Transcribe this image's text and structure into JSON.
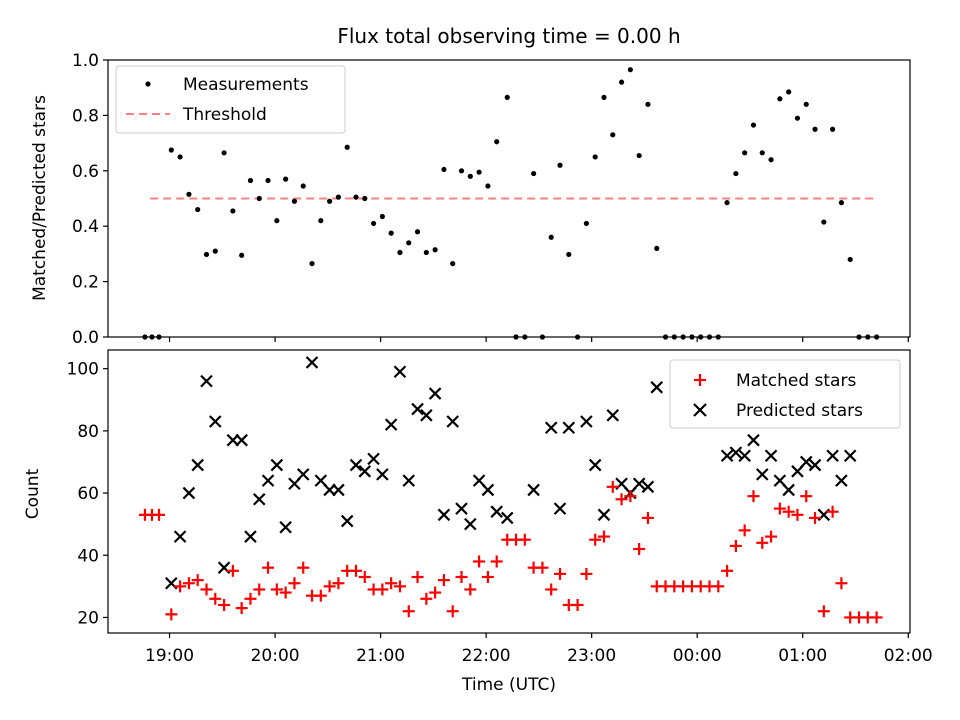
{
  "chart_data": [
    {
      "type": "scatter",
      "title": "Flux total observing time = 0.00 h",
      "xlabel": "",
      "ylabel": "Matched/Predicted stars",
      "ylim": [
        0,
        1.0
      ],
      "yticks": [
        "0.0",
        "0.2",
        "0.4",
        "0.6",
        "0.8",
        "1.0"
      ],
      "legend": {
        "position": "top-left",
        "entries": [
          "Measurements",
          "Threshold"
        ]
      },
      "threshold": {
        "value": 0.5,
        "x_start": "18:49",
        "x_end": "01:42",
        "color": "#ff8080"
      },
      "series": [
        {
          "name": "Measurements",
          "color": "#000000",
          "points": [
            [
              "18:46",
              0.0
            ],
            [
              "18:50",
              0.0
            ],
            [
              "18:54",
              0.0
            ],
            [
              "19:01",
              0.675
            ],
            [
              "19:06",
              0.65
            ],
            [
              "19:11",
              0.515
            ],
            [
              "19:16",
              0.46
            ],
            [
              "19:21",
              0.298
            ],
            [
              "19:26",
              0.31
            ],
            [
              "19:31",
              0.665
            ],
            [
              "19:36",
              0.455
            ],
            [
              "19:41",
              0.295
            ],
            [
              "19:46",
              0.565
            ],
            [
              "19:51",
              0.5
            ],
            [
              "19:56",
              0.565
            ],
            [
              "20:01",
              0.42
            ],
            [
              "20:06",
              0.57
            ],
            [
              "20:11",
              0.49
            ],
            [
              "20:16",
              0.545
            ],
            [
              "20:21",
              0.265
            ],
            [
              "20:26",
              0.42
            ],
            [
              "20:31",
              0.49
            ],
            [
              "20:36",
              0.505
            ],
            [
              "20:41",
              0.685
            ],
            [
              "20:46",
              0.505
            ],
            [
              "20:51",
              0.5
            ],
            [
              "20:56",
              0.41
            ],
            [
              "21:01",
              0.435
            ],
            [
              "21:06",
              0.375
            ],
            [
              "21:11",
              0.305
            ],
            [
              "21:16",
              0.34
            ],
            [
              "21:21",
              0.38
            ],
            [
              "21:26",
              0.305
            ],
            [
              "21:31",
              0.315
            ],
            [
              "21:36",
              0.605
            ],
            [
              "21:41",
              0.265
            ],
            [
              "21:46",
              0.6
            ],
            [
              "21:51",
              0.58
            ],
            [
              "21:56",
              0.595
            ],
            [
              "22:01",
              0.545
            ],
            [
              "22:06",
              0.705
            ],
            [
              "22:12",
              0.865
            ],
            [
              "22:17",
              0.0
            ],
            [
              "22:22",
              0.0
            ],
            [
              "22:27",
              0.59
            ],
            [
              "22:32",
              0.0
            ],
            [
              "22:37",
              0.36
            ],
            [
              "22:42",
              0.62
            ],
            [
              "22:47",
              0.298
            ],
            [
              "22:52",
              0.0
            ],
            [
              "22:57",
              0.41
            ],
            [
              "23:02",
              0.65
            ],
            [
              "23:07",
              0.865
            ],
            [
              "23:12",
              0.73
            ],
            [
              "23:17",
              0.92
            ],
            [
              "23:22",
              0.965
            ],
            [
              "23:27",
              0.655
            ],
            [
              "23:32",
              0.84
            ],
            [
              "23:37",
              0.32
            ],
            [
              "23:42",
              0.0
            ],
            [
              "23:47",
              0.0
            ],
            [
              "23:52",
              0.0
            ],
            [
              "23:57",
              0.0
            ],
            [
              "00:02",
              0.0
            ],
            [
              "00:07",
              0.0
            ],
            [
              "00:12",
              0.0
            ],
            [
              "00:17",
              0.485
            ],
            [
              "00:22",
              0.59
            ],
            [
              "00:27",
              0.665
            ],
            [
              "00:32",
              0.765
            ],
            [
              "00:37",
              0.665
            ],
            [
              "00:42",
              0.64
            ],
            [
              "00:47",
              0.86
            ],
            [
              "00:52",
              0.885
            ],
            [
              "00:57",
              0.79
            ],
            [
              "01:02",
              0.84
            ],
            [
              "01:07",
              0.75
            ],
            [
              "01:12",
              0.415
            ],
            [
              "01:17",
              0.75
            ],
            [
              "01:22",
              0.485
            ],
            [
              "01:27",
              0.28
            ],
            [
              "01:32",
              0.0
            ],
            [
              "01:37",
              0.0
            ],
            [
              "01:42",
              0.0
            ]
          ]
        }
      ]
    },
    {
      "type": "scatter",
      "title": "",
      "xlabel": "Time (UTC)",
      "ylabel": "Count",
      "ylim": [
        15,
        106
      ],
      "yticks": [
        "20",
        "40",
        "60",
        "80",
        "100"
      ],
      "xlim": [
        "18:25",
        "02:01"
      ],
      "xticks": [
        "19:00",
        "20:00",
        "21:00",
        "22:00",
        "23:00",
        "00:00",
        "01:00",
        "02:00"
      ],
      "legend": {
        "position": "top-right",
        "entries": [
          "Matched stars",
          "Predicted stars"
        ]
      },
      "series": [
        {
          "name": "Matched stars",
          "marker": "plus",
          "color": "#ff0000",
          "points": [
            [
              "18:46",
              53
            ],
            [
              "18:50",
              53
            ],
            [
              "18:54",
              53
            ],
            [
              "19:01",
              21
            ],
            [
              "19:06",
              30
            ],
            [
              "19:11",
              31
            ],
            [
              "19:16",
              32
            ],
            [
              "19:21",
              29
            ],
            [
              "19:26",
              26
            ],
            [
              "19:31",
              24
            ],
            [
              "19:36",
              35
            ],
            [
              "19:41",
              23
            ],
            [
              "19:46",
              26
            ],
            [
              "19:51",
              29
            ],
            [
              "19:56",
              36
            ],
            [
              "20:01",
              29
            ],
            [
              "20:06",
              28
            ],
            [
              "20:11",
              31
            ],
            [
              "20:16",
              36
            ],
            [
              "20:21",
              27
            ],
            [
              "20:26",
              27
            ],
            [
              "20:31",
              30
            ],
            [
              "20:36",
              31
            ],
            [
              "20:41",
              35
            ],
            [
              "20:46",
              35
            ],
            [
              "20:51",
              33
            ],
            [
              "20:56",
              29
            ],
            [
              "21:01",
              29
            ],
            [
              "21:06",
              31
            ],
            [
              "21:11",
              30
            ],
            [
              "21:16",
              22
            ],
            [
              "21:21",
              33
            ],
            [
              "21:26",
              26
            ],
            [
              "21:31",
              28
            ],
            [
              "21:36",
              32
            ],
            [
              "21:41",
              22
            ],
            [
              "21:46",
              33
            ],
            [
              "21:51",
              29
            ],
            [
              "21:56",
              38
            ],
            [
              "22:01",
              33
            ],
            [
              "22:06",
              38
            ],
            [
              "22:12",
              45
            ],
            [
              "22:17",
              45
            ],
            [
              "22:22",
              45
            ],
            [
              "22:27",
              36
            ],
            [
              "22:32",
              36
            ],
            [
              "22:37",
              29
            ],
            [
              "22:42",
              34
            ],
            [
              "22:47",
              24
            ],
            [
              "22:52",
              24
            ],
            [
              "22:57",
              34
            ],
            [
              "23:02",
              45
            ],
            [
              "23:07",
              46
            ],
            [
              "23:12",
              62
            ],
            [
              "23:17",
              58
            ],
            [
              "23:22",
              59
            ],
            [
              "23:27",
              42
            ],
            [
              "23:32",
              52
            ],
            [
              "23:37",
              30
            ],
            [
              "23:42",
              30
            ],
            [
              "23:47",
              30
            ],
            [
              "23:52",
              30
            ],
            [
              "23:57",
              30
            ],
            [
              "00:02",
              30
            ],
            [
              "00:07",
              30
            ],
            [
              "00:12",
              30
            ],
            [
              "00:17",
              35
            ],
            [
              "00:22",
              43
            ],
            [
              "00:27",
              48
            ],
            [
              "00:32",
              59
            ],
            [
              "00:37",
              44
            ],
            [
              "00:42",
              46
            ],
            [
              "00:47",
              55
            ],
            [
              "00:52",
              54
            ],
            [
              "00:57",
              53
            ],
            [
              "01:02",
              59
            ],
            [
              "01:07",
              52
            ],
            [
              "01:12",
              22
            ],
            [
              "01:17",
              54
            ],
            [
              "01:22",
              31
            ],
            [
              "01:27",
              20
            ],
            [
              "01:32",
              20
            ],
            [
              "01:37",
              20
            ],
            [
              "01:42",
              20
            ]
          ]
        },
        {
          "name": "Predicted stars",
          "marker": "x",
          "color": "#000000",
          "points": [
            [
              "19:01",
              31
            ],
            [
              "19:06",
              46
            ],
            [
              "19:11",
              60
            ],
            [
              "19:16",
              69
            ],
            [
              "19:21",
              96
            ],
            [
              "19:26",
              83
            ],
            [
              "19:31",
              36
            ],
            [
              "19:36",
              77
            ],
            [
              "19:41",
              77
            ],
            [
              "19:46",
              46
            ],
            [
              "19:51",
              58
            ],
            [
              "19:56",
              64
            ],
            [
              "20:01",
              69
            ],
            [
              "20:06",
              49
            ],
            [
              "20:11",
              63
            ],
            [
              "20:16",
              66
            ],
            [
              "20:21",
              102
            ],
            [
              "20:26",
              64
            ],
            [
              "20:31",
              61
            ],
            [
              "20:36",
              61
            ],
            [
              "20:41",
              51
            ],
            [
              "20:46",
              69
            ],
            [
              "20:51",
              67
            ],
            [
              "20:56",
              71
            ],
            [
              "21:01",
              66
            ],
            [
              "21:06",
              82
            ],
            [
              "21:11",
              99
            ],
            [
              "21:16",
              64
            ],
            [
              "21:21",
              87
            ],
            [
              "21:26",
              85
            ],
            [
              "21:31",
              92
            ],
            [
              "21:36",
              53
            ],
            [
              "21:41",
              83
            ],
            [
              "21:46",
              55
            ],
            [
              "21:51",
              50
            ],
            [
              "21:56",
              64
            ],
            [
              "22:01",
              61
            ],
            [
              "22:06",
              54
            ],
            [
              "22:12",
              52
            ],
            [
              "22:27",
              61
            ],
            [
              "22:37",
              81
            ],
            [
              "22:42",
              55
            ],
            [
              "22:47",
              81
            ],
            [
              "22:57",
              83
            ],
            [
              "23:02",
              69
            ],
            [
              "23:07",
              53
            ],
            [
              "23:12",
              85
            ],
            [
              "23:17",
              63
            ],
            [
              "23:22",
              60
            ],
            [
              "23:27",
              63
            ],
            [
              "23:32",
              62
            ],
            [
              "23:37",
              94
            ],
            [
              "00:17",
              72
            ],
            [
              "00:22",
              73
            ],
            [
              "00:27",
              72
            ],
            [
              "00:32",
              77
            ],
            [
              "00:37",
              66
            ],
            [
              "00:42",
              72
            ],
            [
              "00:47",
              64
            ],
            [
              "00:52",
              61
            ],
            [
              "00:57",
              67
            ],
            [
              "01:02",
              70
            ],
            [
              "01:07",
              69
            ],
            [
              "01:12",
              53
            ],
            [
              "01:17",
              72
            ],
            [
              "01:22",
              64
            ],
            [
              "01:27",
              72
            ]
          ]
        }
      ]
    }
  ]
}
